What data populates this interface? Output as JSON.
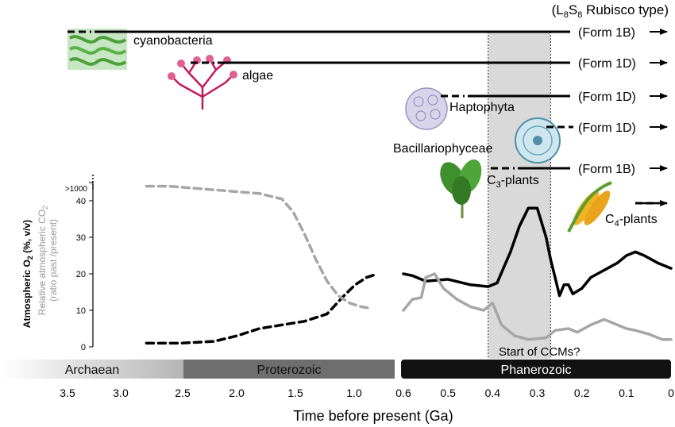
{
  "chart_data": {
    "type": "line",
    "title": "",
    "header_label": "(L8S8 Rubisco type)",
    "header_parts": {
      "open": "(L",
      "sub1": "8",
      "mid": "S",
      "sub2": "8",
      "rest": " Rubisco type)"
    },
    "xlabel": "Time before present (Ga)",
    "ylabel_o2": "Atmospheric O2 (%, v/v)",
    "ylabel_o2_parts": {
      "pre": "Atmospheric O",
      "sub": "2",
      "post": " (%, v/v)"
    },
    "ylabel_co2": "Relative atmospheric CO2",
    "ylabel_co2_parts": {
      "pre": "Relative atmospheric CO",
      "sub": "2",
      "post": ""
    },
    "ylabel_co2_sub": "(ratio past /present)",
    "y_ticks": [
      "0",
      "10",
      "20",
      "30",
      "40",
      ">1000"
    ],
    "x_ticks_left": [
      "3.5",
      "3.0",
      "2.5",
      "2.0",
      "1.5",
      "1.0",
      "0.5"
    ],
    "x_ticks_right": [
      "0.6",
      "0.5",
      "0.4",
      "0.3",
      "0.2",
      "0.1",
      "0"
    ],
    "eras": [
      "Archaean",
      "Proterozoic",
      "Phanerozoic"
    ],
    "ccm_window_ga": [
      0.41,
      0.27
    ],
    "ccm_label": "Start of CCMs?",
    "lineages": [
      {
        "name": "cyanobacteria",
        "form": "(Form 1B)",
        "start_ga": 3.5
      },
      {
        "name": "algae",
        "form": "(Form 1D)",
        "start_ga": 2.5
      },
      {
        "name": "Haptophyta",
        "form": "(Form 1D)",
        "start_ga": 0.45
      },
      {
        "name": "Bacillariophyceae",
        "form": "(Form 1D)",
        "start_ga": 0.22
      },
      {
        "name": "C3-plants",
        "name_parts": {
          "pre": "C",
          "sub": "3",
          "post": "-plants"
        },
        "form": "(Form 1B)",
        "start_ga": 0.4
      },
      {
        "name": "C4-plants",
        "name_parts": {
          "pre": "C",
          "sub": "4",
          "post": "-plants"
        },
        "form": "",
        "start_ga": 0.03
      }
    ],
    "series": [
      {
        "name": "Atmospheric O2",
        "color": "#000000",
        "segments": [
          {
            "scale": "long",
            "style": "dashed",
            "points": [
              [
                2.8,
                1
              ],
              [
                2.5,
                1
              ],
              [
                2.2,
                1.5
              ],
              [
                2.0,
                3
              ],
              [
                1.8,
                5
              ],
              [
                1.6,
                6
              ],
              [
                1.4,
                7
              ],
              [
                1.2,
                9
              ],
              [
                1.05,
                14
              ],
              [
                0.95,
                17
              ],
              [
                0.85,
                19
              ],
              [
                0.75,
                20
              ]
            ]
          },
          {
            "scale": "short",
            "style": "solid",
            "points": [
              [
                0.6,
                20
              ],
              [
                0.58,
                19.5
              ],
              [
                0.55,
                18
              ],
              [
                0.5,
                18.5
              ],
              [
                0.45,
                17
              ],
              [
                0.41,
                16.5
              ],
              [
                0.39,
                17.5
              ],
              [
                0.36,
                26
              ],
              [
                0.34,
                33
              ],
              [
                0.32,
                38
              ],
              [
                0.3,
                38
              ],
              [
                0.28,
                30
              ],
              [
                0.27,
                24
              ],
              [
                0.26,
                19
              ],
              [
                0.25,
                14
              ],
              [
                0.24,
                17
              ],
              [
                0.23,
                17
              ],
              [
                0.22,
                14.5
              ],
              [
                0.2,
                16
              ],
              [
                0.18,
                19
              ],
              [
                0.15,
                21
              ],
              [
                0.12,
                23
              ],
              [
                0.1,
                25
              ],
              [
                0.08,
                26
              ],
              [
                0.06,
                25
              ],
              [
                0.03,
                23
              ],
              [
                0.0,
                21.5
              ]
            ]
          }
        ]
      },
      {
        "name": "Relative atmospheric CO2",
        "color": "#a6a6a6",
        "segments": [
          {
            "scale": "long",
            "style": "dashed",
            "points": [
              [
                2.8,
                44
              ],
              [
                2.6,
                44
              ],
              [
                2.4,
                43.5
              ],
              [
                2.2,
                43
              ],
              [
                2.0,
                42.5
              ],
              [
                1.8,
                42
              ],
              [
                1.6,
                40.5
              ],
              [
                1.5,
                37
              ],
              [
                1.4,
                31
              ],
              [
                1.3,
                24
              ],
              [
                1.2,
                18
              ],
              [
                1.1,
                14
              ],
              [
                1.0,
                12
              ],
              [
                0.9,
                11
              ],
              [
                0.8,
                10.5
              ]
            ]
          },
          {
            "scale": "short",
            "style": "solid",
            "points": [
              [
                0.6,
                10
              ],
              [
                0.58,
                13
              ],
              [
                0.56,
                13.5
              ],
              [
                0.55,
                19
              ],
              [
                0.53,
                20
              ],
              [
                0.51,
                16
              ],
              [
                0.48,
                13
              ],
              [
                0.45,
                11
              ],
              [
                0.42,
                10
              ],
              [
                0.4,
                12
              ],
              [
                0.38,
                6
              ],
              [
                0.35,
                3
              ],
              [
                0.32,
                2
              ],
              [
                0.28,
                2.5
              ],
              [
                0.26,
                4.5
              ],
              [
                0.23,
                5
              ],
              [
                0.21,
                4
              ],
              [
                0.18,
                6
              ],
              [
                0.15,
                7.5
              ],
              [
                0.12,
                6
              ],
              [
                0.1,
                5
              ],
              [
                0.08,
                4.5
              ],
              [
                0.05,
                3.5
              ],
              [
                0.02,
                2
              ],
              [
                0.0,
                2
              ]
            ]
          }
        ]
      }
    ],
    "ylim": [
      0,
      40
    ]
  }
}
